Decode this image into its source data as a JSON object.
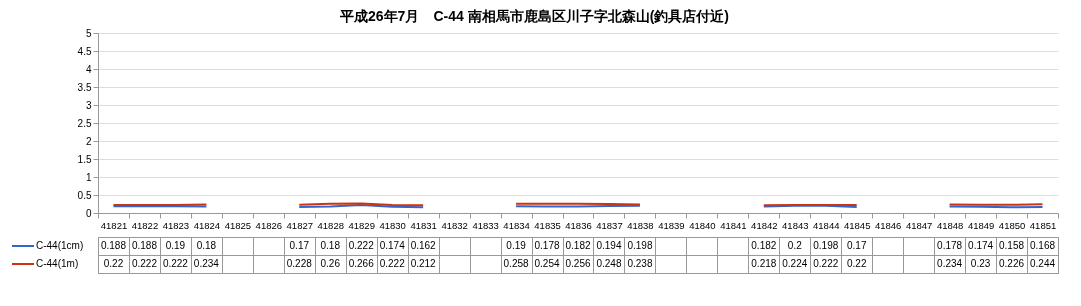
{
  "chart_data": {
    "type": "line",
    "title": "平成26年7月　C-44 南相馬市鹿島区川子字北森山(釣具店付近)",
    "categories": [
      "41821",
      "41822",
      "41823",
      "41824",
      "41825",
      "41826",
      "41827",
      "41828",
      "41829",
      "41830",
      "41831",
      "41832",
      "41833",
      "41834",
      "41835",
      "41836",
      "41837",
      "41838",
      "41839",
      "41840",
      "41841",
      "41842",
      "41843",
      "41844",
      "41845",
      "41846",
      "41847",
      "41848",
      "41849",
      "41850",
      "41851"
    ],
    "series": [
      {
        "name": "C-44(1cm)",
        "color": "#3366cc",
        "values": [
          0.188,
          0.188,
          0.19,
          0.18,
          null,
          null,
          0.17,
          0.18,
          0.222,
          0.174,
          0.162,
          null,
          null,
          0.19,
          0.178,
          0.182,
          0.194,
          0.198,
          null,
          null,
          null,
          0.182,
          0.2,
          0.198,
          0.17,
          null,
          null,
          0.178,
          0.174,
          0.158,
          0.168
        ]
      },
      {
        "name": "C-44(1m)",
        "color": "#cc3311",
        "values": [
          0.22,
          0.222,
          0.222,
          0.234,
          null,
          null,
          0.228,
          0.26,
          0.266,
          0.222,
          0.212,
          null,
          null,
          0.258,
          0.254,
          0.256,
          0.248,
          0.238,
          null,
          null,
          null,
          0.218,
          0.224,
          0.222,
          0.22,
          null,
          null,
          0.234,
          0.23,
          0.226,
          0.244
        ]
      }
    ],
    "ylim": [
      0,
      5
    ],
    "yticks": [
      0,
      0.5,
      1,
      1.5,
      2,
      2.5,
      3,
      3.5,
      4,
      4.5,
      5
    ],
    "grid": "y",
    "legend": "bottom left",
    "data_labels": true
  }
}
